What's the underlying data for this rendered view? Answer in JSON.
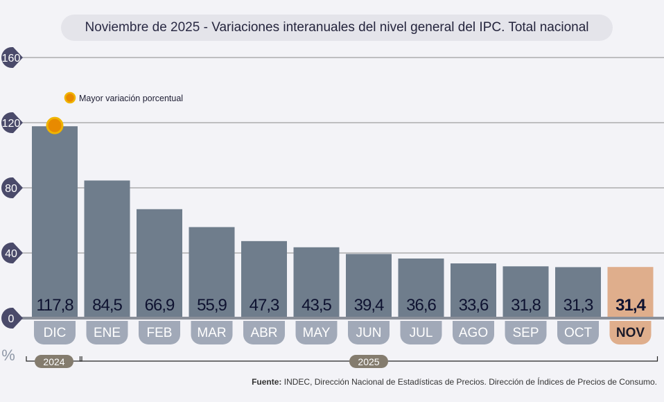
{
  "chart_data": {
    "type": "bar",
    "title_prefix": "Noviembre de 2025 - ",
    "title": "Variaciones interanuales del nivel general del IPC. Total nacional",
    "categories": [
      "DIC",
      "ENE",
      "FEB",
      "MAR",
      "ABR",
      "MAY",
      "JUN",
      "JUL",
      "AGO",
      "SEP",
      "OCT",
      "NOV"
    ],
    "values": [
      117.8,
      84.5,
      66.9,
      55.9,
      47.3,
      43.5,
      39.4,
      36.6,
      33.6,
      31.8,
      31.3,
      31.4
    ],
    "value_labels": [
      "117,8",
      "84,5",
      "66,9",
      "55,9",
      "47,3",
      "43,5",
      "39,4",
      "36,6",
      "33,6",
      "31,8",
      "31,3",
      "31,4"
    ],
    "highlight_index": 11,
    "max_index": 0,
    "ylabel": "%",
    "ylim": [
      0,
      160
    ],
    "yticks": [
      0,
      40,
      80,
      120,
      160
    ],
    "grid": true,
    "legend": {
      "label": "Mayor variación porcentual",
      "placement": "top-left"
    },
    "year_groups": [
      {
        "label": "2024",
        "from": 0,
        "to": 0
      },
      {
        "label": "2025",
        "from": 1,
        "to": 11
      }
    ],
    "colors": {
      "bar": "#6f7d8c",
      "highlight": "#dfae8c",
      "tick_marker": "#4a4a6a",
      "marker": "#e88a00",
      "month_pill": "#a1a9b8",
      "highlight_pill": "#dfae8c",
      "year_2024": "#847c6e",
      "year_2025": "#847c6e"
    }
  },
  "source": {
    "label": "Fuente:",
    "text": " INDEC, Dirección Nacional de Estadísticas de Precios. Dirección de Índices de Precios de Consumo."
  }
}
